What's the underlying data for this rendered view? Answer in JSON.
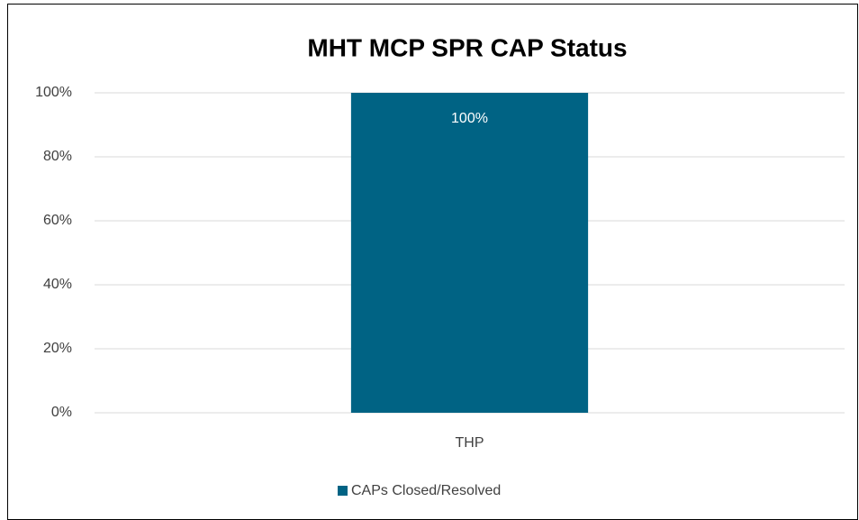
{
  "chart_data": {
    "type": "bar",
    "title": "MHT MCP SPR CAP Status",
    "categories": [
      "THP"
    ],
    "series": [
      {
        "name": "CAPs Closed/Resolved",
        "color": "#006384",
        "values": [
          100
        ],
        "value_labels": [
          "100%"
        ]
      }
    ],
    "ylim": [
      0,
      100
    ],
    "yticks": [
      {
        "value": 0,
        "label": "0%"
      },
      {
        "value": 20,
        "label": "20%"
      },
      {
        "value": 40,
        "label": "40%"
      },
      {
        "value": 60,
        "label": "60%"
      },
      {
        "value": 80,
        "label": "80%"
      },
      {
        "value": 100,
        "label": "100%"
      }
    ],
    "grid": true,
    "legend": "bottom"
  }
}
